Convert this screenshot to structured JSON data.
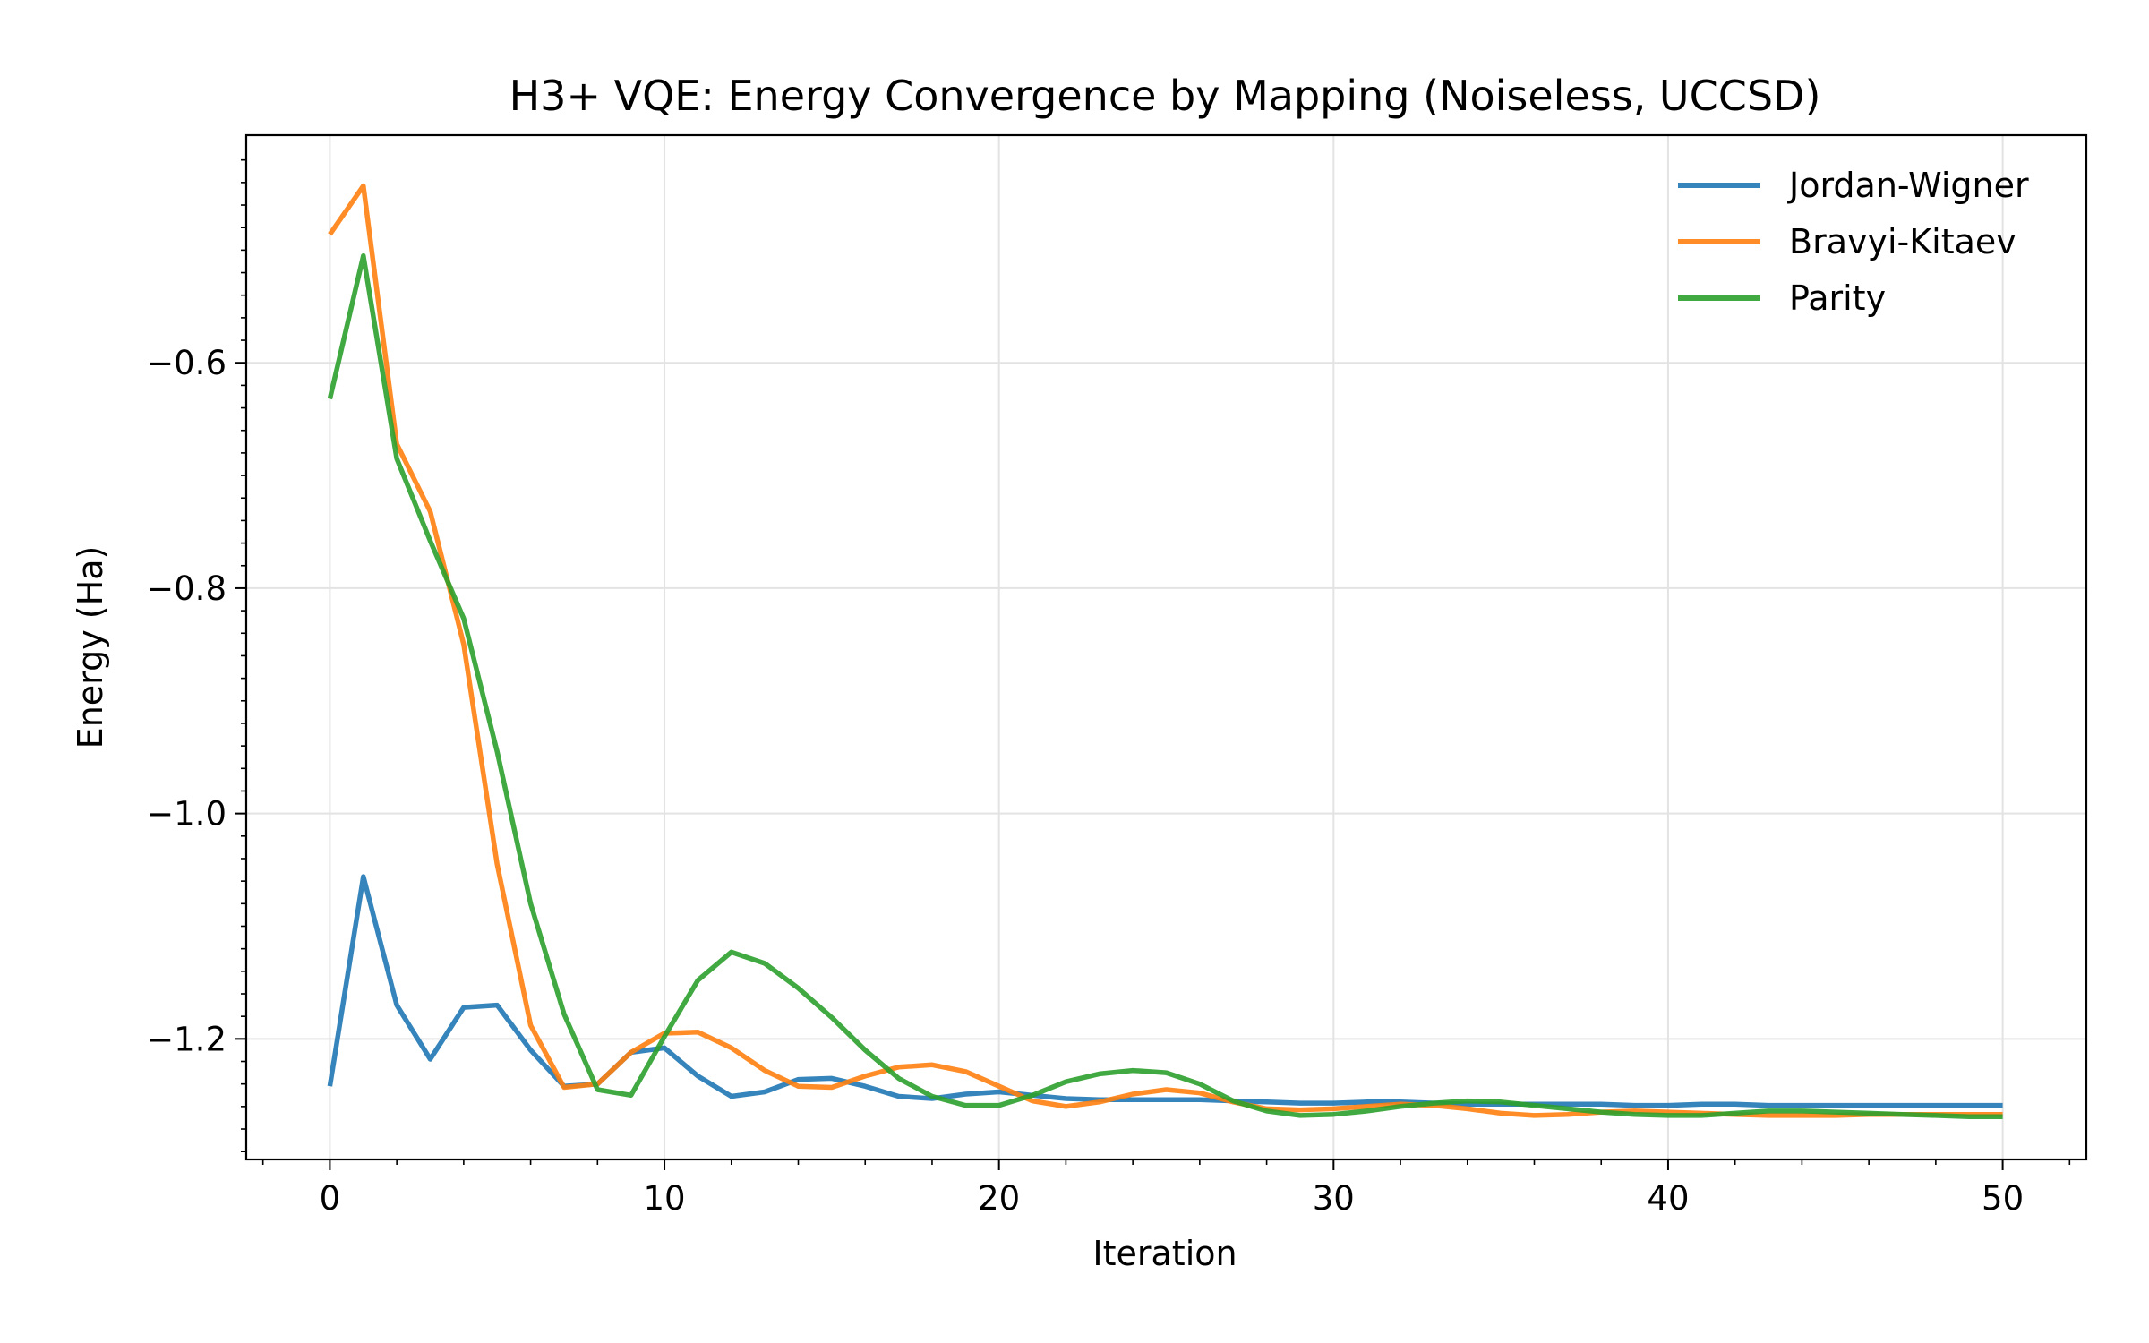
{
  "chart_data": {
    "type": "line",
    "title": "H3+ VQE: Energy Convergence by Mapping (Noiseless, UCCSD)",
    "xlabel": "Iteration",
    "ylabel": "Energy (Ha)",
    "xlim": [
      -2.5,
      52.5
    ],
    "ylim": [
      -1.307,
      -0.398
    ],
    "x_ticks": [
      0,
      10,
      20,
      30,
      40,
      50
    ],
    "x_tick_labels": [
      "0",
      "10",
      "20",
      "30",
      "40",
      "50"
    ],
    "y_ticks": [
      -0.6,
      -0.8,
      -1.0,
      -1.2
    ],
    "y_tick_labels": [
      "−0.6",
      "−0.8",
      "−1.0",
      "−1.2"
    ],
    "grid": true,
    "legend_position": "top-right",
    "x": [
      0,
      1,
      2,
      3,
      4,
      5,
      6,
      7,
      8,
      9,
      10,
      11,
      12,
      13,
      14,
      15,
      16,
      17,
      18,
      19,
      20,
      21,
      22,
      23,
      24,
      25,
      26,
      27,
      28,
      29,
      30,
      31,
      32,
      33,
      34,
      35,
      36,
      37,
      38,
      39,
      40,
      41,
      42,
      43,
      44,
      45,
      46,
      47,
      48,
      49,
      50
    ],
    "series": [
      {
        "name": "Jordan-Wigner",
        "color": "#1f77b4",
        "values": [
          -1.242,
          -1.056,
          -1.17,
          -1.218,
          -1.172,
          -1.17,
          -1.21,
          -1.242,
          -1.24,
          -1.212,
          -1.208,
          -1.233,
          -1.251,
          -1.247,
          -1.236,
          -1.235,
          -1.242,
          -1.251,
          -1.253,
          -1.249,
          -1.247,
          -1.25,
          -1.253,
          -1.254,
          -1.254,
          -1.254,
          -1.254,
          -1.255,
          -1.256,
          -1.257,
          -1.257,
          -1.256,
          -1.256,
          -1.257,
          -1.258,
          -1.258,
          -1.258,
          -1.258,
          -1.258,
          -1.259,
          -1.259,
          -1.258,
          -1.258,
          -1.259,
          -1.259,
          -1.259,
          -1.259,
          -1.259,
          -1.259,
          -1.259,
          -1.259
        ]
      },
      {
        "name": "Bravyi-Kitaev",
        "color": "#ff7f0e",
        "values": [
          -0.486,
          -0.443,
          -0.672,
          -0.732,
          -0.85,
          -1.045,
          -1.188,
          -1.243,
          -1.24,
          -1.212,
          -1.195,
          -1.194,
          -1.208,
          -1.228,
          -1.242,
          -1.243,
          -1.233,
          -1.225,
          -1.223,
          -1.229,
          -1.242,
          -1.255,
          -1.26,
          -1.256,
          -1.249,
          -1.245,
          -1.248,
          -1.256,
          -1.262,
          -1.263,
          -1.262,
          -1.26,
          -1.258,
          -1.259,
          -1.262,
          -1.266,
          -1.268,
          -1.267,
          -1.265,
          -1.264,
          -1.265,
          -1.266,
          -1.267,
          -1.268,
          -1.268,
          -1.268,
          -1.267,
          -1.267,
          -1.267,
          -1.267,
          -1.267
        ]
      },
      {
        "name": "Parity",
        "color": "#2ca02c",
        "values": [
          -0.632,
          -0.505,
          -0.685,
          -0.758,
          -0.827,
          -0.945,
          -1.08,
          -1.178,
          -1.245,
          -1.25,
          -1.198,
          -1.148,
          -1.123,
          -1.133,
          -1.155,
          -1.181,
          -1.21,
          -1.235,
          -1.251,
          -1.259,
          -1.259,
          -1.25,
          -1.238,
          -1.231,
          -1.228,
          -1.23,
          -1.24,
          -1.255,
          -1.264,
          -1.268,
          -1.267,
          -1.264,
          -1.26,
          -1.257,
          -1.255,
          -1.256,
          -1.259,
          -1.262,
          -1.265,
          -1.267,
          -1.268,
          -1.268,
          -1.266,
          -1.264,
          -1.264,
          -1.265,
          -1.266,
          -1.267,
          -1.268,
          -1.269,
          -1.269
        ]
      }
    ]
  }
}
